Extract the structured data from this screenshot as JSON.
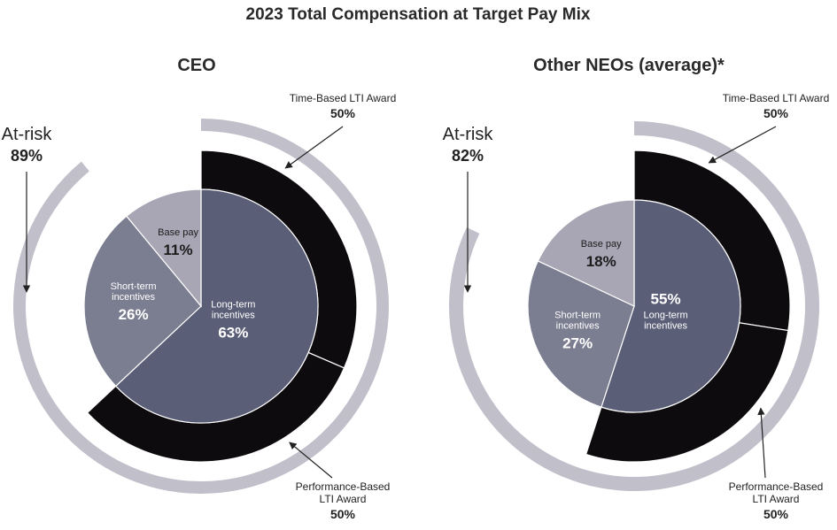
{
  "chart_data": {
    "type": "pie",
    "title": "2023 Total Compensation at Target Pay Mix",
    "colors": {
      "base_pay": "#a8a6b4",
      "short_term": "#7b7d90",
      "long_term": "#5a5f77",
      "lti_ring": "#0e0b0f",
      "at_risk_ring": "#c0bfca",
      "divider": "#ffffff",
      "light_text": "#ffffff",
      "dark_text": "#1c1c1c"
    },
    "charts": [
      {
        "subtitle": "CEO",
        "slices": [
          {
            "key": "long_term",
            "label": "Long-term incentives",
            "label_lines": [
              "Long-term",
              "incentives"
            ],
            "percent_label": "63%",
            "value": 63,
            "color_key": "long_term",
            "text_key": "light_text"
          },
          {
            "key": "short_term",
            "label": "Short-term incentives",
            "label_lines": [
              "Short-term",
              "incentives"
            ],
            "percent_label": "26%",
            "value": 26,
            "color_key": "short_term",
            "text_key": "light_text"
          },
          {
            "key": "base_pay",
            "label": "Base pay",
            "label_lines": [
              "Base pay"
            ],
            "percent_label": "11%",
            "value": 11,
            "color_key": "base_pay",
            "text_key": "dark_text"
          }
        ],
        "lti_split": [
          {
            "label_lines": [
              "Time-Based LTI Award"
            ],
            "percent_label": "50%",
            "value": 50
          },
          {
            "label_lines": [
              "Performance-Based",
              "LTI Award"
            ],
            "percent_label": "50%",
            "value": 50
          }
        ],
        "at_risk": {
          "label": "At-risk",
          "percent_label": "89%",
          "value": 89
        }
      },
      {
        "subtitle": "Other NEOs (average)*",
        "slices": [
          {
            "key": "long_term",
            "label": "Long-term incentives",
            "label_lines": [
              "Long-term",
              "incentives"
            ],
            "percent_label": "55%",
            "value": 55,
            "color_key": "long_term",
            "text_key": "light_text"
          },
          {
            "key": "short_term",
            "label": "Short-term incentives",
            "label_lines": [
              "Short-term",
              "incentives"
            ],
            "percent_label": "27%",
            "value": 27,
            "color_key": "short_term",
            "text_key": "light_text"
          },
          {
            "key": "base_pay",
            "label": "Base pay",
            "label_lines": [
              "Base pay"
            ],
            "percent_label": "18%",
            "value": 18,
            "color_key": "base_pay",
            "text_key": "dark_text"
          }
        ],
        "lti_split": [
          {
            "label_lines": [
              "Time-Based LTI Award"
            ],
            "percent_label": "50%",
            "value": 50
          },
          {
            "label_lines": [
              "Performance-Based",
              "LTI Award"
            ],
            "percent_label": "50%",
            "value": 50
          }
        ],
        "at_risk": {
          "label": "At-risk",
          "percent_label": "82%",
          "value": 82
        }
      }
    ]
  }
}
